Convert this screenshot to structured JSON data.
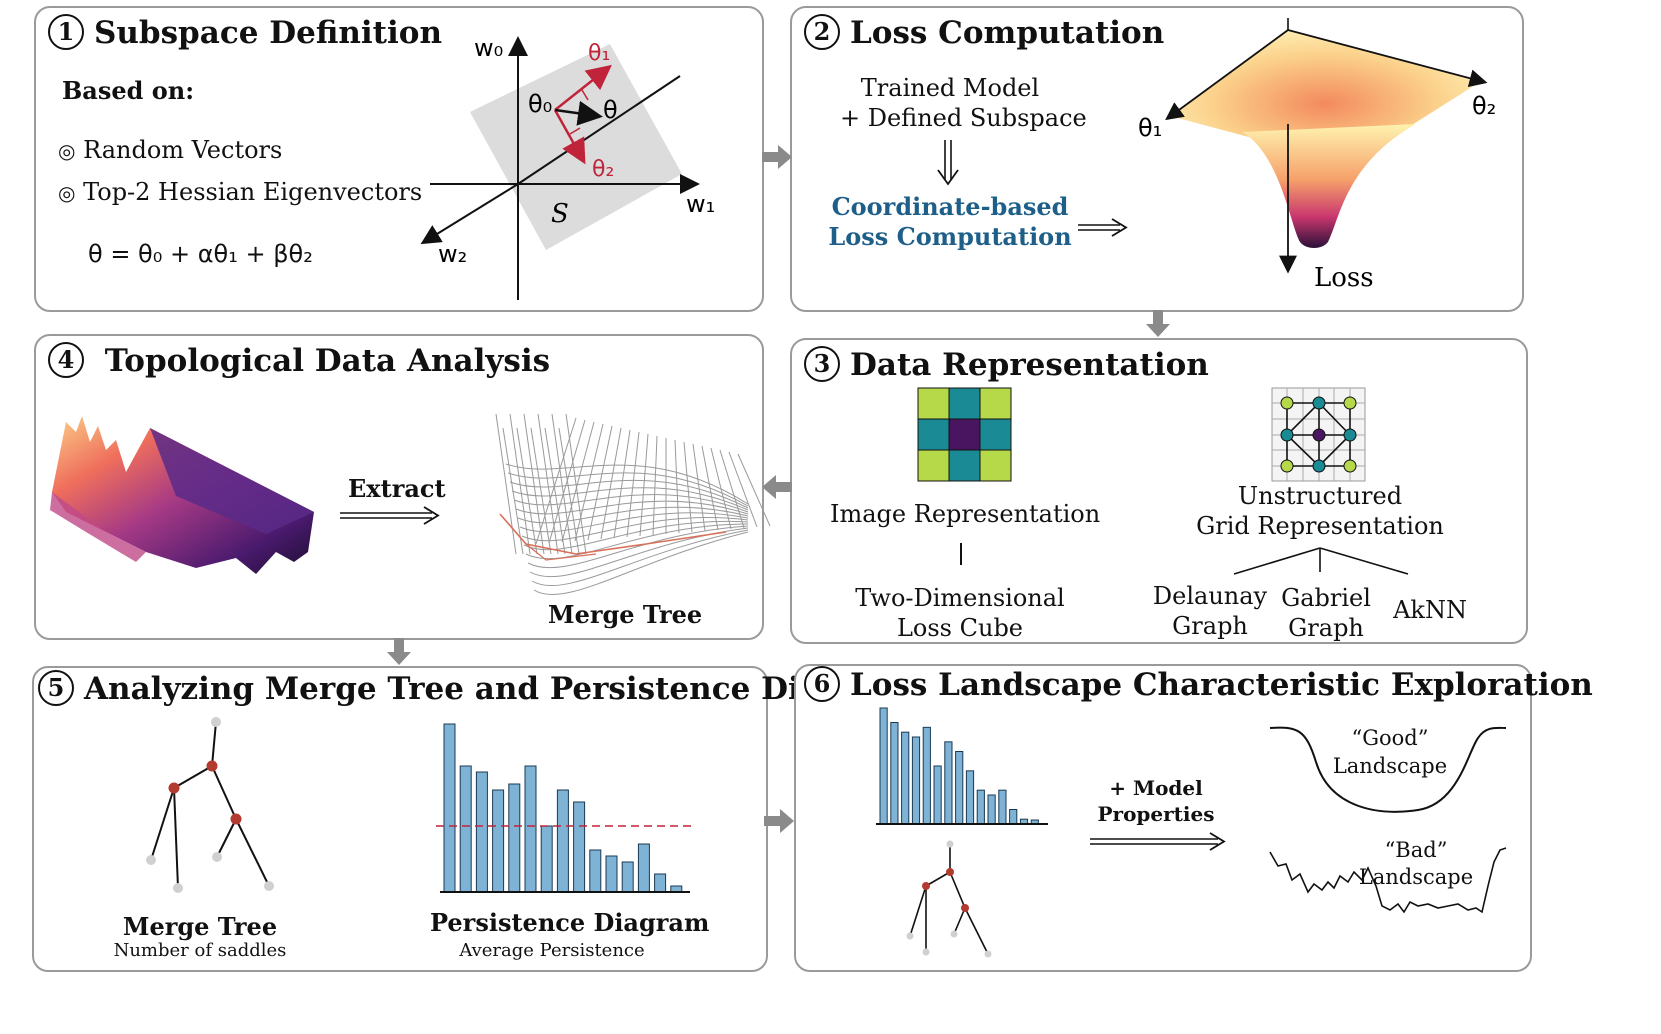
{
  "panels": {
    "p1": {
      "num": "1",
      "title": "Subspace Definition",
      "based_on": "Based on:",
      "options": [
        "Random Vectors",
        "Top-2 Hessian Eigenvectors"
      ],
      "equation": "θ = θ₀ + αθ₁ + βθ₂",
      "labels": {
        "w0": "w₀",
        "w1": "w₁",
        "w2": "w₂",
        "theta0": "θ₀",
        "theta": "θ",
        "theta1": "θ₁",
        "theta2": "θ₂",
        "s": "S"
      }
    },
    "p2": {
      "num": "2",
      "title": "Loss Computation",
      "line1": "Trained Model",
      "line2": "+ Defined Subspace",
      "highlight1": "Coordinate-based",
      "highlight2": "Loss Computation",
      "theta1": "θ₁",
      "theta2": "θ₂",
      "loss": "Loss"
    },
    "p3": {
      "num": "3",
      "title": "Data Representation",
      "image_rep": "Image Representation",
      "cube1": "Two-Dimensional",
      "cube2": "Loss Cube",
      "unstructured1": "Unstructured",
      "unstructured2": "Grid Representation",
      "delaunay1": "Delaunay",
      "delaunay2": "Graph",
      "gabriel1": "Gabriel",
      "gabriel2": "Graph",
      "aknn": "AkNN"
    },
    "p4": {
      "num": "4",
      "title": "Topological Data Analysis",
      "extract": "Extract",
      "merge_tree": "Merge Tree"
    },
    "p5": {
      "num": "5",
      "title": "Analyzing Merge Tree and Persistence Diagram",
      "merge_tree": "Merge Tree",
      "merge_sub": "Number of saddles",
      "pd": "Persistence Diagram",
      "pd_sub": "Average Persistence"
    },
    "p6": {
      "num": "6",
      "title": "Loss Landscape Characteristic Exploration",
      "model1": "+ Model",
      "model2": "Properties",
      "good1": "“Good”",
      "good2": "Landscape",
      "bad1": "“Bad”",
      "bad2": "Landscape"
    }
  },
  "colors": {
    "accent_red": "#c0243a",
    "accent_blue": "#1e5f8a",
    "bar": "#7eb3d6",
    "tree_node": "#b33a2e"
  },
  "chart_data": [
    {
      "type": "bar",
      "values": [
        28,
        21,
        20,
        17,
        18,
        21,
        11,
        17,
        15,
        7,
        6,
        5,
        8,
        3,
        1
      ],
      "threshold": 11
    },
    {
      "type": "bar",
      "values": [
        24,
        21,
        19,
        18,
        20,
        12,
        17,
        15,
        11,
        7,
        6,
        7,
        3,
        1,
        0
      ]
    }
  ]
}
